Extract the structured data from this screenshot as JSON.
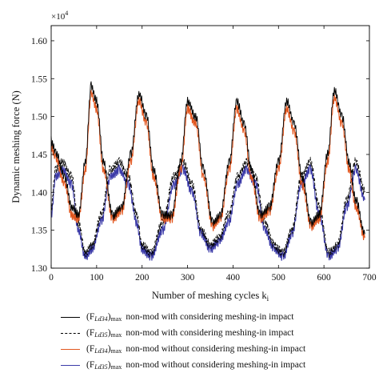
{
  "chart_data": {
    "type": "line",
    "xlabel": "Number of meshing cycles k",
    "xlabel_sub": "i",
    "ylabel": "Dynamic meshing force (N)",
    "y_multiplier": "×10",
    "y_multiplier_exp": "4",
    "xlim": [
      0,
      700
    ],
    "ylim": [
      1.3,
      1.62
    ],
    "xticks": [
      "0",
      "100",
      "200",
      "300",
      "400",
      "500",
      "600",
      "700"
    ],
    "yticks": [
      "1.30",
      "1.35",
      "1.40",
      "1.45",
      "1.50",
      "1.55",
      "1.60"
    ],
    "grid": false,
    "legend_position": "below",
    "series": [
      {
        "name": "(F_Ld34)max non-mod with considering meshing-in impact",
        "name_var": "(F",
        "name_sub": "Ld34",
        "name_sub2": "max",
        "desc": "non-mod with considering meshing-in impact",
        "color": "#000000",
        "dash": "solid",
        "x": [
          0,
          10,
          30,
          45,
          60,
          75,
          88,
          100,
          115,
          135,
          155,
          175,
          193,
          210,
          225,
          245,
          265,
          285,
          300,
          318,
          335,
          355,
          372,
          392,
          408,
          425,
          440,
          460,
          480,
          500,
          518,
          535,
          552,
          572,
          590,
          608,
          623,
          640,
          655,
          670,
          690
        ],
        "y": [
          1.468,
          1.452,
          1.42,
          1.38,
          1.37,
          1.44,
          1.54,
          1.52,
          1.44,
          1.37,
          1.38,
          1.45,
          1.53,
          1.5,
          1.43,
          1.37,
          1.37,
          1.44,
          1.52,
          1.5,
          1.43,
          1.36,
          1.37,
          1.44,
          1.52,
          1.49,
          1.43,
          1.37,
          1.38,
          1.44,
          1.52,
          1.49,
          1.42,
          1.36,
          1.37,
          1.45,
          1.535,
          1.5,
          1.44,
          1.39,
          1.345
        ]
      },
      {
        "name": "(F_Ld35)max non-mod with considering meshing-in impact",
        "name_var": "(F",
        "name_sub": "Ld35",
        "name_sub2": "max",
        "desc": "non-mod with considering meshing-in impact",
        "color": "#000000",
        "dash": "dashed",
        "x": [
          0,
          10,
          25,
          45,
          60,
          75,
          90,
          110,
          130,
          150,
          170,
          188,
          200,
          220,
          245,
          270,
          290,
          310,
          330,
          350,
          370,
          390,
          410,
          430,
          450,
          470,
          490,
          510,
          530,
          550,
          570,
          590,
          610,
          630,
          650,
          670,
          690
        ],
        "y": [
          1.38,
          1.43,
          1.44,
          1.42,
          1.36,
          1.32,
          1.33,
          1.37,
          1.43,
          1.44,
          1.42,
          1.37,
          1.33,
          1.32,
          1.36,
          1.42,
          1.44,
          1.41,
          1.35,
          1.33,
          1.34,
          1.37,
          1.42,
          1.44,
          1.42,
          1.36,
          1.33,
          1.32,
          1.35,
          1.42,
          1.44,
          1.38,
          1.32,
          1.33,
          1.39,
          1.44,
          1.4
        ]
      },
      {
        "name": "(F_Ld34)max non-mod without considering meshing-in impact",
        "name_var": "(F",
        "name_sub": "Ld34",
        "name_sub2": "max",
        "desc": "non-mod without considering meshing-in impact",
        "color": "#e2571f",
        "dash": "solid",
        "x": [
          0,
          10,
          30,
          45,
          60,
          75,
          88,
          100,
          115,
          135,
          155,
          175,
          193,
          210,
          225,
          245,
          265,
          285,
          300,
          318,
          335,
          355,
          372,
          392,
          408,
          425,
          440,
          460,
          480,
          500,
          518,
          535,
          552,
          572,
          590,
          608,
          623,
          640,
          655,
          670,
          690
        ],
        "y": [
          1.46,
          1.445,
          1.41,
          1.37,
          1.365,
          1.43,
          1.53,
          1.51,
          1.43,
          1.365,
          1.375,
          1.44,
          1.52,
          1.49,
          1.42,
          1.365,
          1.365,
          1.43,
          1.51,
          1.49,
          1.42,
          1.355,
          1.365,
          1.43,
          1.51,
          1.48,
          1.42,
          1.365,
          1.375,
          1.43,
          1.51,
          1.48,
          1.41,
          1.355,
          1.365,
          1.44,
          1.525,
          1.49,
          1.43,
          1.38,
          1.34
        ]
      },
      {
        "name": "(F_Ld35)max non-mod without considering meshing-in impact",
        "name_var": "(F",
        "name_sub": "Ld35",
        "name_sub2": "max",
        "desc": "non-mod without considering meshing-in impact",
        "color": "#3b3aa8",
        "dash": "solid",
        "x": [
          0,
          10,
          25,
          45,
          60,
          75,
          90,
          110,
          130,
          150,
          170,
          188,
          200,
          220,
          245,
          270,
          290,
          310,
          330,
          350,
          370,
          390,
          410,
          430,
          450,
          470,
          490,
          510,
          530,
          550,
          570,
          590,
          610,
          630,
          650,
          670,
          690
        ],
        "y": [
          1.37,
          1.42,
          1.43,
          1.41,
          1.35,
          1.315,
          1.325,
          1.36,
          1.42,
          1.43,
          1.41,
          1.36,
          1.325,
          1.315,
          1.35,
          1.41,
          1.43,
          1.4,
          1.345,
          1.325,
          1.335,
          1.36,
          1.41,
          1.43,
          1.41,
          1.35,
          1.325,
          1.315,
          1.345,
          1.41,
          1.43,
          1.37,
          1.315,
          1.325,
          1.38,
          1.43,
          1.39
        ]
      }
    ]
  }
}
